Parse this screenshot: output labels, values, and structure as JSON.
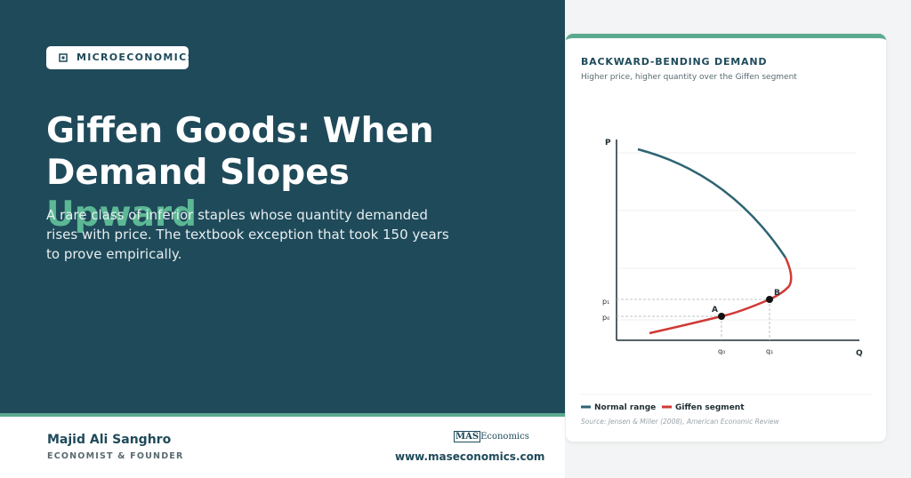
{
  "badge": "MICROECONOMICS",
  "headline": {
    "text": "Giffen Goods: When Demand Slopes",
    "highlight": "Upward"
  },
  "description": "A rare class of inferior staples whose quantity demanded rises with price. The textbook exception that took 150 years to prove empirically.",
  "author": {
    "name": "Majid Ali Sanghro",
    "role": "ECONOMIST & FOUNDER"
  },
  "brand": {
    "logo_box": "MAS",
    "logo_text": "Economics",
    "url": "www.maseconomics.com"
  },
  "card": {
    "title": "BACKWARD-BENDING DEMAND",
    "subtitle": "Higher price, higher quantity over the Giffen segment",
    "axes": {
      "y": "P",
      "x": "Q"
    },
    "price_labels": [
      "p₁",
      "p₀"
    ],
    "quantity_labels": [
      "q₀",
      "q₁"
    ],
    "points": [
      "A",
      "B"
    ],
    "legend": [
      "Normal range",
      "Giffen segment"
    ],
    "source": "Source: Jensen & Miller (2008), American Economic Review"
  }
}
